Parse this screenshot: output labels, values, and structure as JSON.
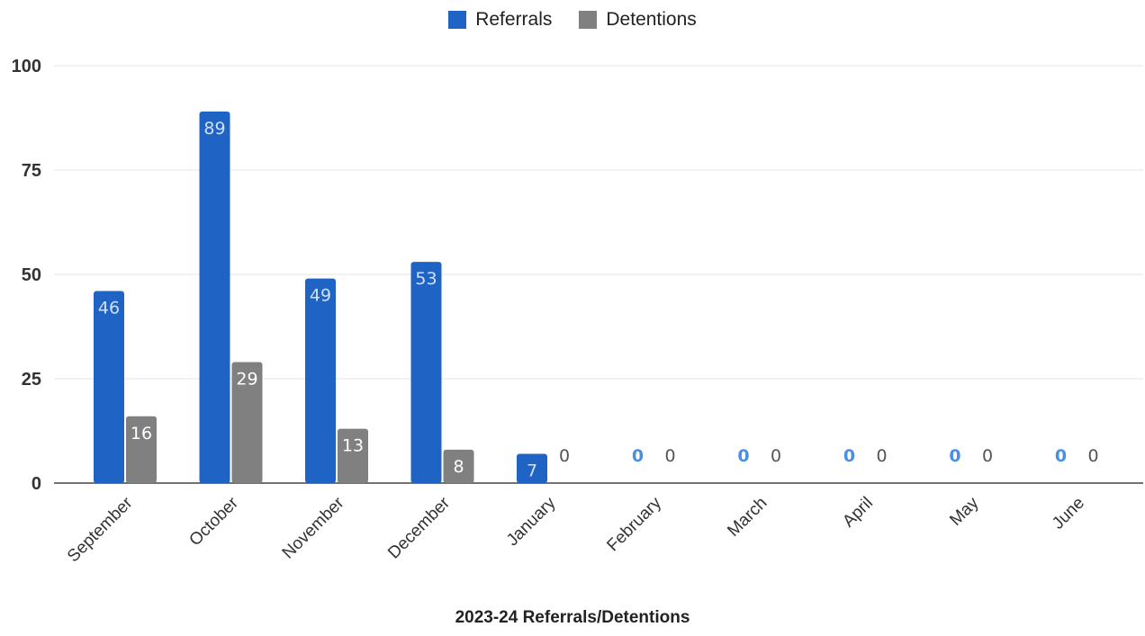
{
  "chart_data": {
    "type": "bar",
    "categories": [
      "September",
      "October",
      "November",
      "December",
      "January",
      "February",
      "March",
      "April",
      "May",
      "June"
    ],
    "series": [
      {
        "name": "Referrals",
        "color": "#1f64c4",
        "label_color": "#4a8fe6",
        "values": [
          46,
          89,
          49,
          53,
          7,
          0,
          0,
          0,
          0,
          0
        ]
      },
      {
        "name": "Detentions",
        "color": "#808080",
        "label_color": "#555555",
        "values": [
          16,
          29,
          13,
          8,
          0,
          0,
          0,
          0,
          0,
          0
        ]
      }
    ],
    "xlabel": "2023-24 Referrals/Detentions",
    "ylabel": "",
    "ylim": [
      0,
      100
    ],
    "yticks": [
      "0",
      "25",
      "50",
      "75",
      "100"
    ],
    "grid": true,
    "legend": "top-center"
  }
}
